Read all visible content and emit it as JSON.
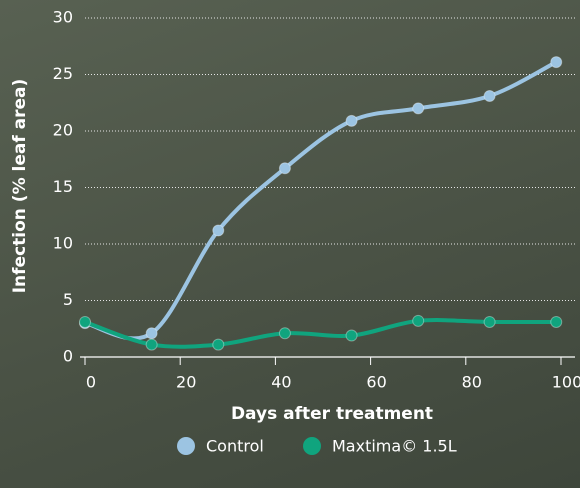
{
  "chart_data": {
    "type": "line",
    "x_label": "Days after treatment",
    "y_label": "Infection (% leaf area)",
    "x": [
      0,
      14,
      28,
      42,
      56,
      70,
      85,
      99
    ],
    "series": [
      {
        "name": "Control",
        "color": "#9cc4e2",
        "values": [
          3,
          2.1,
          11.2,
          16.7,
          20.9,
          22,
          23.1,
          26.1
        ]
      },
      {
        "name": "Maxtima© 1.5L",
        "color": "#10a47e",
        "values": [
          3.1,
          1.1,
          1.1,
          2.1,
          1.9,
          3.2,
          3.1,
          3.1
        ]
      }
    ],
    "xlim": [
      0,
      100
    ],
    "xticks": [
      0,
      20,
      40,
      60,
      80,
      100
    ],
    "ylim": [
      0,
      30
    ],
    "yticks": [
      0,
      5,
      10,
      15,
      20,
      25,
      30
    ],
    "grid": true
  }
}
